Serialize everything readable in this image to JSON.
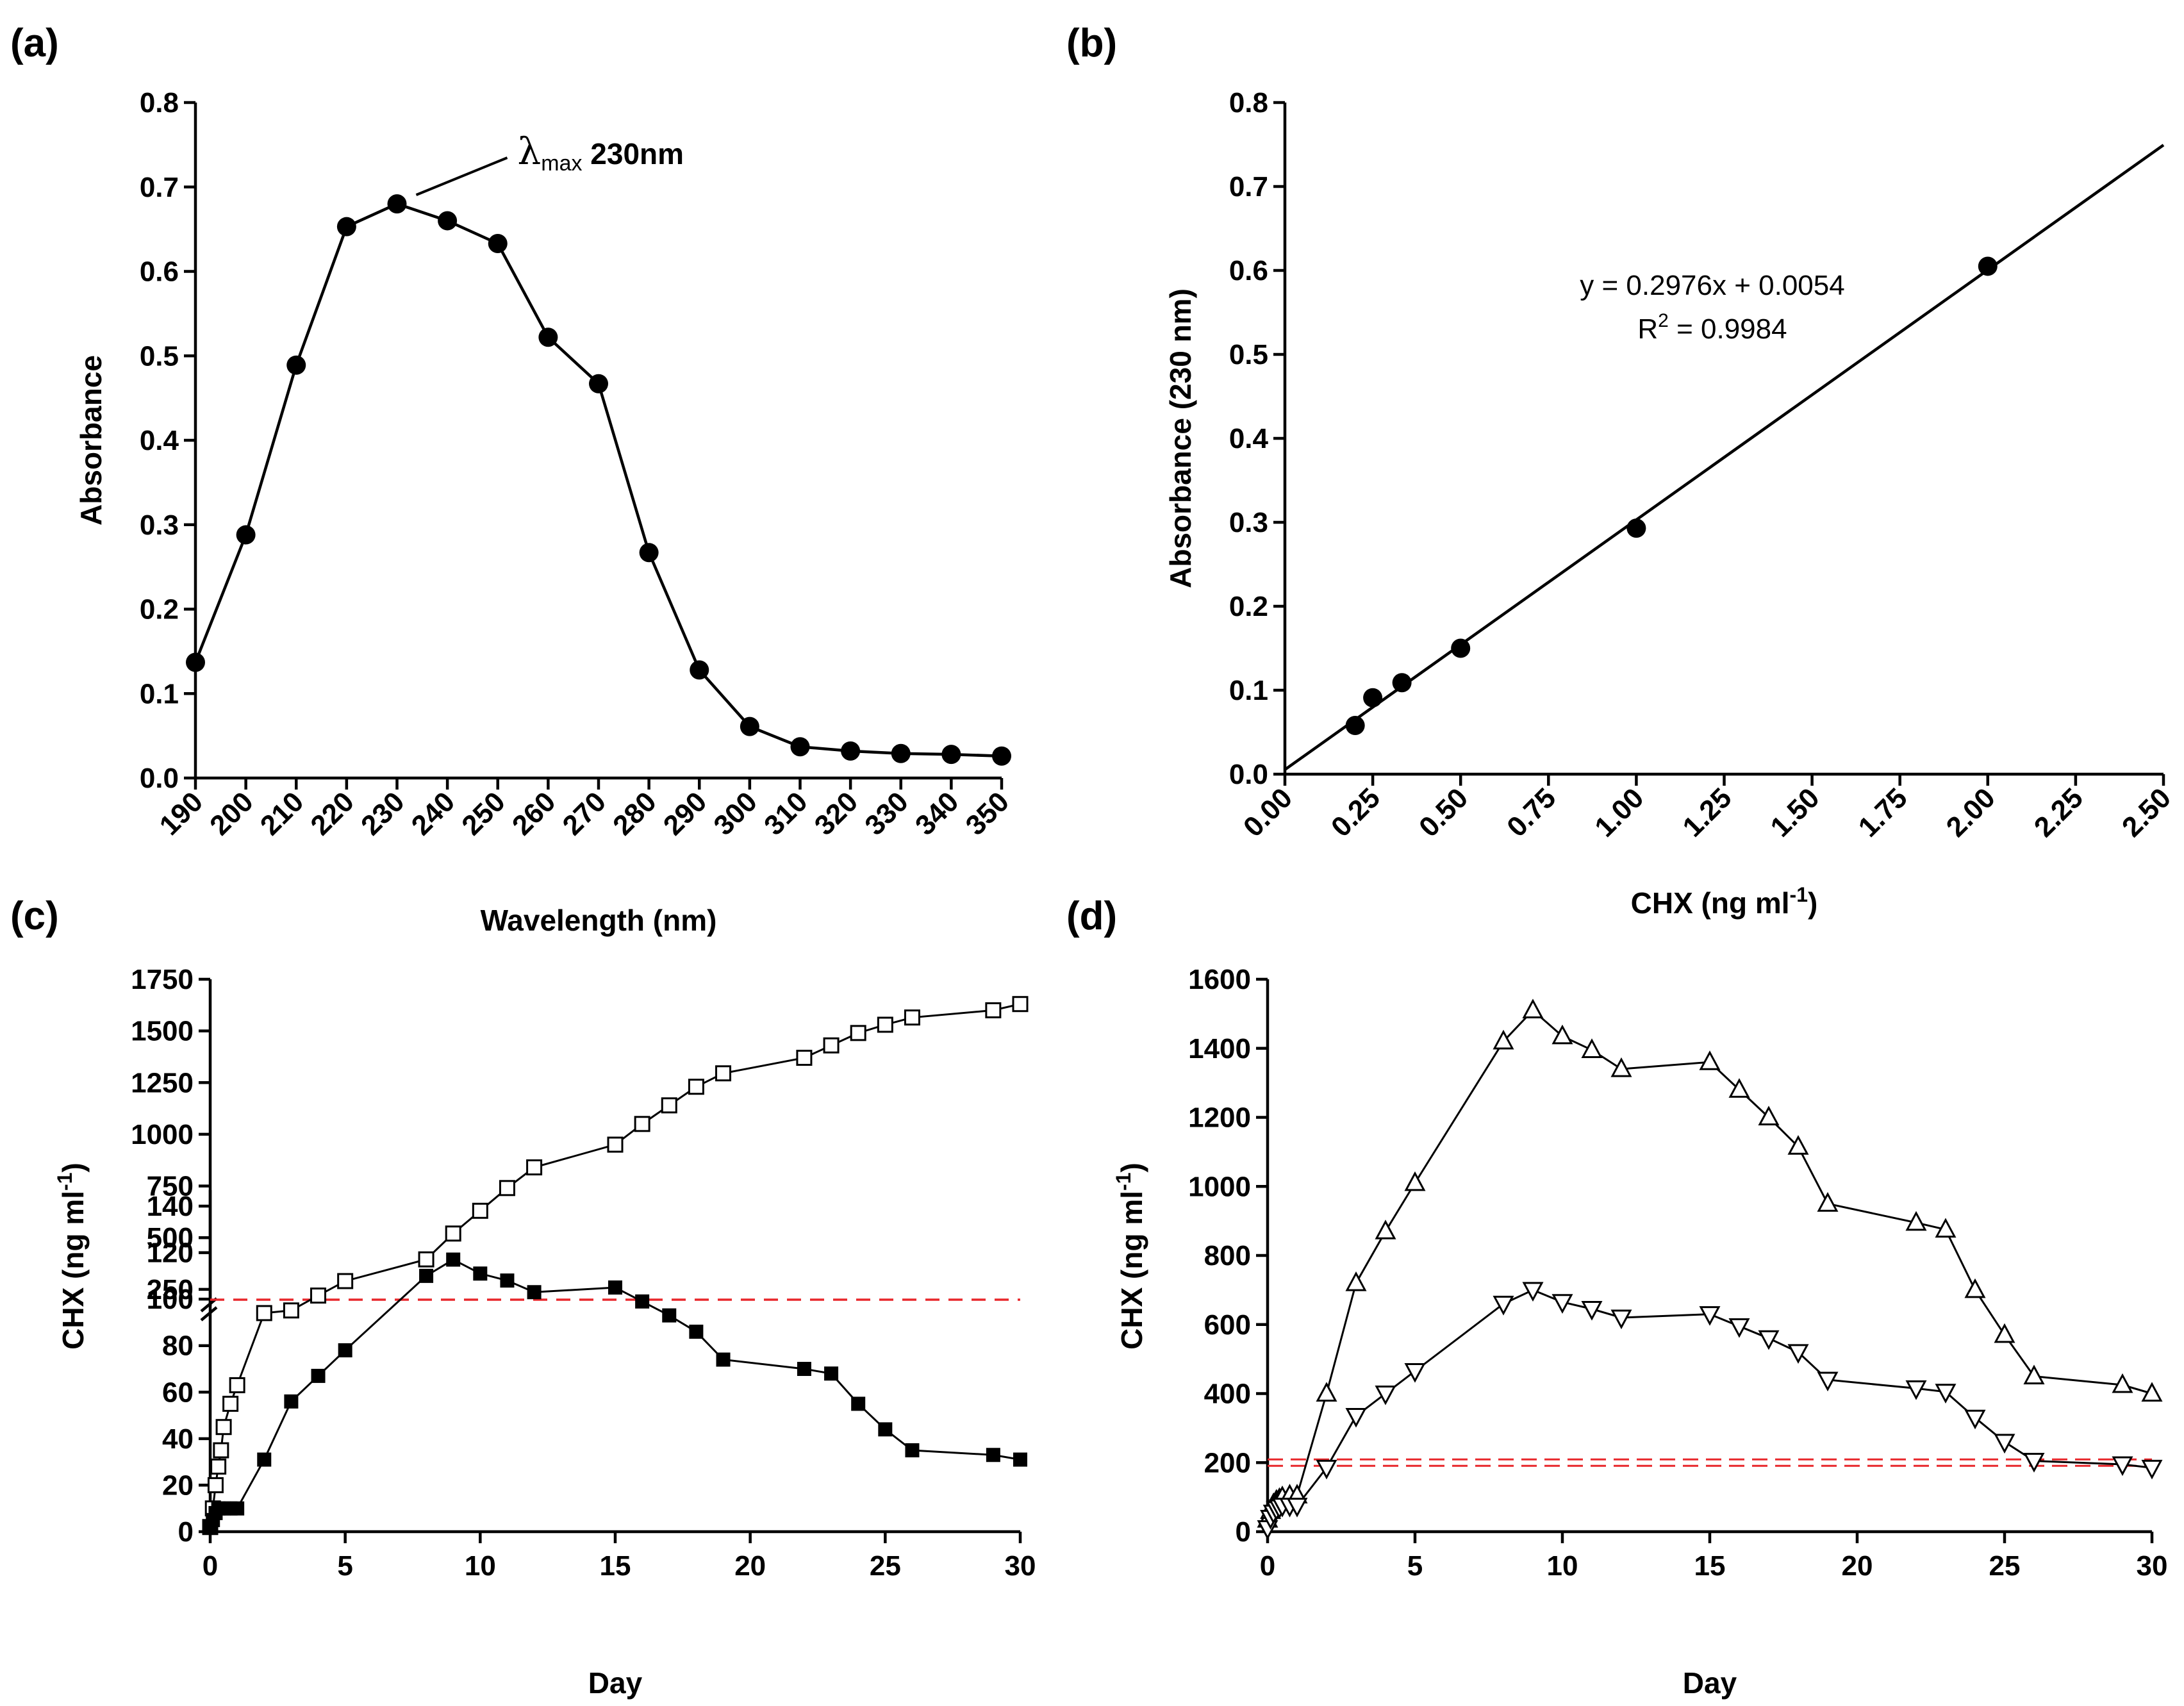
{
  "chart_data": [
    {
      "id": "a",
      "panel_label": "(a)",
      "type": "line",
      "xlabel": "Wavelength (nm)",
      "ylabel": "Absorbance",
      "xlim": [
        190,
        350
      ],
      "ylim": [
        0,
        0.8
      ],
      "x_ticks": [
        "190",
        "200",
        "210",
        "220",
        "230",
        "240",
        "250",
        "260",
        "270",
        "280",
        "290",
        "300",
        "310",
        "320",
        "330",
        "340",
        "350"
      ],
      "y_ticks": [
        "0.0",
        "0.1",
        "0.2",
        "0.3",
        "0.4",
        "0.5",
        "0.6",
        "0.7",
        "0.8"
      ],
      "annotation": {
        "symbol": "λ",
        "subscript": "max",
        "text": "230nm",
        "at_x": 230,
        "at_y": 0.68
      },
      "series": [
        {
          "name": "Absorbance spectrum",
          "marker": "filled-circle",
          "x": [
            190,
            200,
            210,
            220,
            230,
            240,
            250,
            260,
            270,
            280,
            290,
            300,
            310,
            320,
            330,
            340,
            350
          ],
          "y": [
            0.137,
            0.288,
            0.489,
            0.653,
            0.68,
            0.66,
            0.633,
            0.522,
            0.467,
            0.267,
            0.128,
            0.061,
            0.037,
            0.032,
            0.029,
            0.028,
            0.026
          ]
        }
      ]
    },
    {
      "id": "b",
      "panel_label": "(b)",
      "type": "scatter",
      "xlabel": "CHX (ng ml",
      "xlabel_sup": "-1",
      "xlabel_tail": ")",
      "ylabel": "Absorbance (230 nm)",
      "xlim": [
        0,
        2.5
      ],
      "ylim": [
        0,
        0.8
      ],
      "x_ticks": [
        "0.00",
        "0.25",
        "0.50",
        "0.75",
        "1.00",
        "1.25",
        "1.50",
        "1.75",
        "2.00",
        "2.25",
        "2.50"
      ],
      "y_ticks": [
        "0.0",
        "0.1",
        "0.2",
        "0.3",
        "0.4",
        "0.5",
        "0.6",
        "0.7",
        "0.8"
      ],
      "equation": "y = 0.2976x + 0.0054",
      "r2_prefix": "R",
      "r2_sup": "2",
      "r2_text": " = 0.9984",
      "fit": {
        "slope": 0.2976,
        "intercept": 0.0054
      },
      "series": [
        {
          "name": "Calibration points",
          "marker": "filled-circle",
          "x": [
            0.2,
            0.25,
            0.333,
            0.5,
            1.0,
            2.0
          ],
          "y": [
            0.058,
            0.091,
            0.109,
            0.15,
            0.293,
            0.605
          ]
        }
      ]
    },
    {
      "id": "c",
      "panel_label": "(c)",
      "type": "line",
      "xlabel": "Day",
      "ylabel": "CHX (ng ml",
      "ylabel_sup": "-1",
      "ylabel_tail": ")",
      "xlim": [
        0,
        30
      ],
      "y_break": {
        "lower": [
          0,
          140
        ],
        "upper": [
          200,
          1750
        ]
      },
      "x_ticks": [
        "0",
        "5",
        "10",
        "15",
        "20",
        "25",
        "30"
      ],
      "y_ticks_lower": [
        "0",
        "20",
        "40",
        "60",
        "80",
        "100",
        "120",
        "140"
      ],
      "y_ticks_upper": [
        "250",
        "500",
        "750",
        "1000",
        "1250",
        "1500",
        "1750"
      ],
      "reference_line": {
        "y": 200,
        "color": "#e8262a",
        "style": "dashed"
      },
      "series": [
        {
          "name": "Open squares",
          "marker": "open-square",
          "x": [
            0,
            0.1,
            0.2,
            0.3,
            0.4,
            0.5,
            0.75,
            1,
            2,
            3,
            4,
            5,
            8,
            9,
            10,
            11,
            12,
            15,
            16,
            17,
            18,
            19,
            22,
            23,
            24,
            25,
            26,
            29,
            30
          ],
          "y": [
            2,
            10,
            20,
            28,
            35,
            45,
            55,
            63,
            94,
            148,
            220,
            290,
            395,
            520,
            630,
            740,
            840,
            950,
            1050,
            1140,
            1230,
            1295,
            1370,
            1430,
            1490,
            1530,
            1565,
            1600,
            1630
          ]
        },
        {
          "name": "Filled squares",
          "marker": "filled-square",
          "x": [
            0,
            0.1,
            0.2,
            0.3,
            0.5,
            0.75,
            1,
            2,
            3,
            4,
            5,
            8,
            9,
            10,
            11,
            12,
            15,
            16,
            17,
            18,
            19,
            22,
            23,
            24,
            25,
            26,
            29,
            30
          ],
          "y": [
            2,
            5,
            8,
            10,
            10,
            10,
            10,
            31,
            56,
            67,
            78,
            110,
            117,
            111,
            108,
            103,
            105,
            99,
            93,
            86,
            74,
            70,
            68,
            55,
            44,
            35,
            33,
            31
          ]
        }
      ]
    },
    {
      "id": "d",
      "panel_label": "(d)",
      "type": "line",
      "xlabel": "Day",
      "ylabel": "CHX (ng ml",
      "ylabel_sup": "-1",
      "ylabel_tail": ")",
      "xlim": [
        0,
        30
      ],
      "ylim": [
        0,
        1600
      ],
      "x_ticks": [
        "0",
        "5",
        "10",
        "15",
        "20",
        "25",
        "30"
      ],
      "y_ticks": [
        "0",
        "200",
        "400",
        "600",
        "800",
        "1000",
        "1200",
        "1400",
        "1600"
      ],
      "reference_line": {
        "y": 200,
        "color": "#e8262a",
        "style": "dashed"
      },
      "series": [
        {
          "name": "Up triangles",
          "marker": "open-triangle-up",
          "x": [
            0,
            0.1,
            0.2,
            0.3,
            0.4,
            0.5,
            0.75,
            1,
            2,
            3,
            4,
            5,
            8,
            9,
            10,
            11,
            12,
            15,
            16,
            17,
            18,
            19,
            22,
            23,
            24,
            25,
            26,
            29,
            30
          ],
          "y": [
            35,
            60,
            80,
            90,
            95,
            100,
            105,
            105,
            400,
            720,
            870,
            1010,
            1420,
            1510,
            1435,
            1395,
            1340,
            1360,
            1280,
            1200,
            1115,
            950,
            895,
            875,
            700,
            570,
            450,
            425,
            400
          ]
        },
        {
          "name": "Down triangles",
          "marker": "open-triangle-down",
          "x": [
            0,
            0.1,
            0.2,
            0.3,
            0.4,
            0.5,
            0.75,
            1,
            2,
            3,
            4,
            5,
            8,
            9,
            10,
            11,
            12,
            15,
            16,
            17,
            18,
            19,
            22,
            23,
            24,
            25,
            26,
            29,
            30
          ],
          "y": [
            10,
            40,
            55,
            65,
            70,
            75,
            75,
            75,
            185,
            335,
            400,
            465,
            660,
            700,
            665,
            645,
            620,
            630,
            595,
            560,
            520,
            440,
            415,
            405,
            330,
            260,
            205,
            195,
            185
          ]
        }
      ]
    }
  ]
}
